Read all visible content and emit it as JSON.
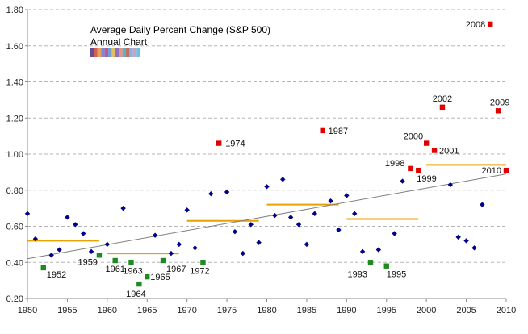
{
  "chart_data": {
    "type": "scatter",
    "title": "Average Daily Percent Change (S&P 500)",
    "subtitle": "Annual Chart",
    "xlim": [
      1950,
      2010
    ],
    "ylim": [
      0.2,
      1.8
    ],
    "x_ticks": [
      "1950",
      "1955",
      "1960",
      "1965",
      "1970",
      "1975",
      "1980",
      "1985",
      "1990",
      "1995",
      "2000",
      "2005",
      "2010"
    ],
    "y_ticks": [
      "0.20",
      "0.40",
      "0.60",
      "0.80",
      "1.00",
      "1.20",
      "1.40",
      "1.60",
      "1.80"
    ],
    "grid": "horizontal-dashed",
    "colors": {
      "normal": "#00008B",
      "low": "#1E8B1E",
      "high": "#E00000",
      "decade_avg": "#E8A200",
      "trend": "#808080"
    },
    "series": [
      {
        "name": "",
        "marker": "diamond",
        "points": [
          [
            1950,
            0.67
          ],
          [
            1951,
            0.53
          ],
          [
            1953,
            0.44
          ],
          [
            1954,
            0.47
          ],
          [
            1955,
            0.65
          ],
          [
            1956,
            0.61
          ],
          [
            1957,
            0.56
          ],
          [
            1958,
            0.46
          ],
          [
            1960,
            0.5
          ],
          [
            1962,
            0.7
          ],
          [
            1966,
            0.55
          ],
          [
            1968,
            0.45
          ],
          [
            1969,
            0.5
          ],
          [
            1970,
            0.69
          ],
          [
            1971,
            0.48
          ],
          [
            1973,
            0.78
          ],
          [
            1975,
            0.79
          ],
          [
            1976,
            0.57
          ],
          [
            1977,
            0.45
          ],
          [
            1978,
            0.61
          ],
          [
            1979,
            0.51
          ],
          [
            1980,
            0.82
          ],
          [
            1981,
            0.66
          ],
          [
            1982,
            0.86
          ],
          [
            1983,
            0.65
          ],
          [
            1984,
            0.61
          ],
          [
            1985,
            0.5
          ],
          [
            1986,
            0.67
          ],
          [
            1988,
            0.74
          ],
          [
            1989,
            0.58
          ],
          [
            1990,
            0.77
          ],
          [
            1991,
            0.67
          ],
          [
            1992,
            0.46
          ],
          [
            1994,
            0.47
          ],
          [
            1996,
            0.56
          ],
          [
            1997,
            0.85
          ],
          [
            2003,
            0.83
          ],
          [
            2004,
            0.54
          ],
          [
            2005,
            0.52
          ],
          [
            2006,
            0.48
          ],
          [
            2007,
            0.72
          ]
        ]
      },
      {
        "name": "",
        "marker": "square",
        "points": [
          {
            "x": 1952,
            "y": 0.37,
            "label": "1952"
          },
          {
            "x": 1959,
            "y": 0.44,
            "label": "1959"
          },
          {
            "x": 1961,
            "y": 0.41,
            "label": "1961"
          },
          {
            "x": 1963,
            "y": 0.4,
            "label": "1963"
          },
          {
            "x": 1964,
            "y": 0.28,
            "label": "1964"
          },
          {
            "x": 1965,
            "y": 0.32,
            "label": "1965"
          },
          {
            "x": 1967,
            "y": 0.41,
            "label": "1967"
          },
          {
            "x": 1972,
            "y": 0.4,
            "label": "1972"
          },
          {
            "x": 1993,
            "y": 0.4,
            "label": "1993"
          },
          {
            "x": 1995,
            "y": 0.38,
            "label": "1995"
          }
        ]
      },
      {
        "name": "",
        "marker": "square",
        "points": [
          {
            "x": 1974,
            "y": 1.06,
            "label": "1974"
          },
          {
            "x": 1987,
            "y": 1.13,
            "label": "1987"
          },
          {
            "x": 1998,
            "y": 0.92,
            "label": "1998"
          },
          {
            "x": 1999,
            "y": 0.91,
            "label": "1999"
          },
          {
            "x": 2000,
            "y": 1.06,
            "label": "2000"
          },
          {
            "x": 2001,
            "y": 1.02,
            "label": "2001"
          },
          {
            "x": 2002,
            "y": 1.26,
            "label": "2002"
          },
          {
            "x": 2008,
            "y": 1.72,
            "label": "2008"
          },
          {
            "x": 2009,
            "y": 1.24,
            "label": "2009"
          },
          {
            "x": 2010,
            "y": 0.91,
            "label": "2010"
          }
        ]
      }
    ],
    "decade_averages": [
      {
        "x0": 1950,
        "x1": 1959,
        "y": 0.52
      },
      {
        "x0": 1960,
        "x1": 1969,
        "y": 0.45
      },
      {
        "x0": 1970,
        "x1": 1979,
        "y": 0.63
      },
      {
        "x0": 1980,
        "x1": 1989,
        "y": 0.72
      },
      {
        "x0": 1990,
        "x1": 1999,
        "y": 0.64
      },
      {
        "x0": 2000,
        "x1": 2010,
        "y": 0.94
      }
    ],
    "trendline": {
      "x0": 1950,
      "y0": 0.42,
      "x1": 2010,
      "y1": 0.89
    }
  }
}
